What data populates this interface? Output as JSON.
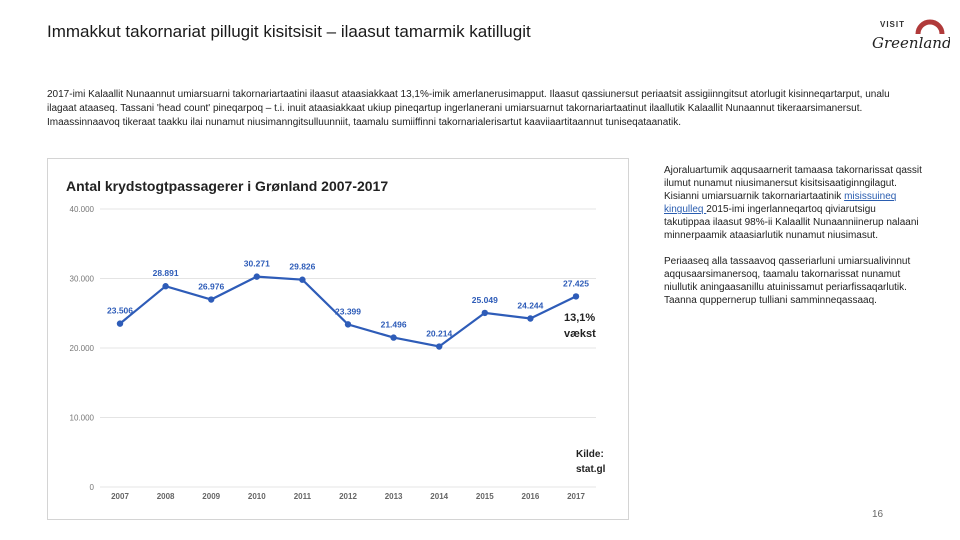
{
  "slide": {
    "title": "Immakkut takornariat pillugit kisitsisit – ilaasut tamarmik katillugit",
    "intro": "2017-imi Kalaallit Nunaannut umiarsuarni takornariartaatini ilaasut ataasiakkaat 13,1%-imik amerlanerusimapput. Ilaasut qassiunersut periaatsit assigiinngitsut atorlugit kisinneqartarput, unalu ilagaat ataaseq. Tassani 'head count' pineqarpoq – t.i. inuit ataasiakkaat ukiup pineqartup ingerlanerani umiarsuarnut takornariartaatinut ilaallutik Kalaallit Nunaannut tikeraarsimanersut. Imaassinnaavoq tikeraat taakku ilai nunamut niusimanngitsulluunniit, taamalu sumiiffinni takornarialerisartut kaaviiaartitaannut tuniseqataanatik.",
    "side_p1_before": "Ajoraluartumik aqqusaarnerit tamaasa takornarissat qassit ilumut nunamut niusimanersut kisitsisaatiginngilagut. Kisianni umiarsuarnik takornariartaatinik ",
    "side_p1_link": "misissuineq kingulleq ",
    "side_p1_after": "2015-imi ingerlanneqartoq qiviarutsigu takutippaa ilaasut 98%-ii Kalaallit Nunaanniinerup nalaani minnerpaamik ataasiarlutik nunamut niusimasut.",
    "side_p2": "Periaaseq alla tassaavoq qasseriarluni umiarsualivinnut aqqusaarsimanersoq, taamalu takornarissat nunamut niullutik aningaasanillu atuinissamut periarfissaqarlutik. Taanna quppernerup tulliani samminneqassaaq.",
    "page_number": "16"
  },
  "logo": {
    "top_text": "VISIT",
    "script_text": "Greenland",
    "color": "#b03a3a"
  },
  "chart_data": {
    "type": "line",
    "title": "Antal krydstogtpassagerer i Grønland 2007-2017",
    "categories": [
      "2007",
      "2008",
      "2009",
      "2010",
      "2011",
      "2012",
      "2013",
      "2014",
      "2015",
      "2016",
      "2017"
    ],
    "values": [
      23506,
      28891,
      26976,
      30271,
      29826,
      23399,
      21496,
      20214,
      25049,
      24244,
      27425
    ],
    "value_labels": [
      "23.506",
      "28.891",
      "26.976",
      "30.271",
      "29.826",
      "23.399",
      "21.496",
      "20.214",
      "25.049",
      "24.244",
      "27.425"
    ],
    "ylim": [
      0,
      40000
    ],
    "yticks": [
      0,
      10000,
      20000,
      30000,
      40000
    ],
    "ytick_labels": [
      "0",
      "10.000",
      "20.000",
      "30.000",
      "40.000"
    ],
    "grid": true,
    "line_color": "#2e5cb8",
    "growth_label_1": "13,1%",
    "growth_label_2": "vækst",
    "source_label_1": "Kilde:",
    "source_label_2": "stat.gl"
  }
}
